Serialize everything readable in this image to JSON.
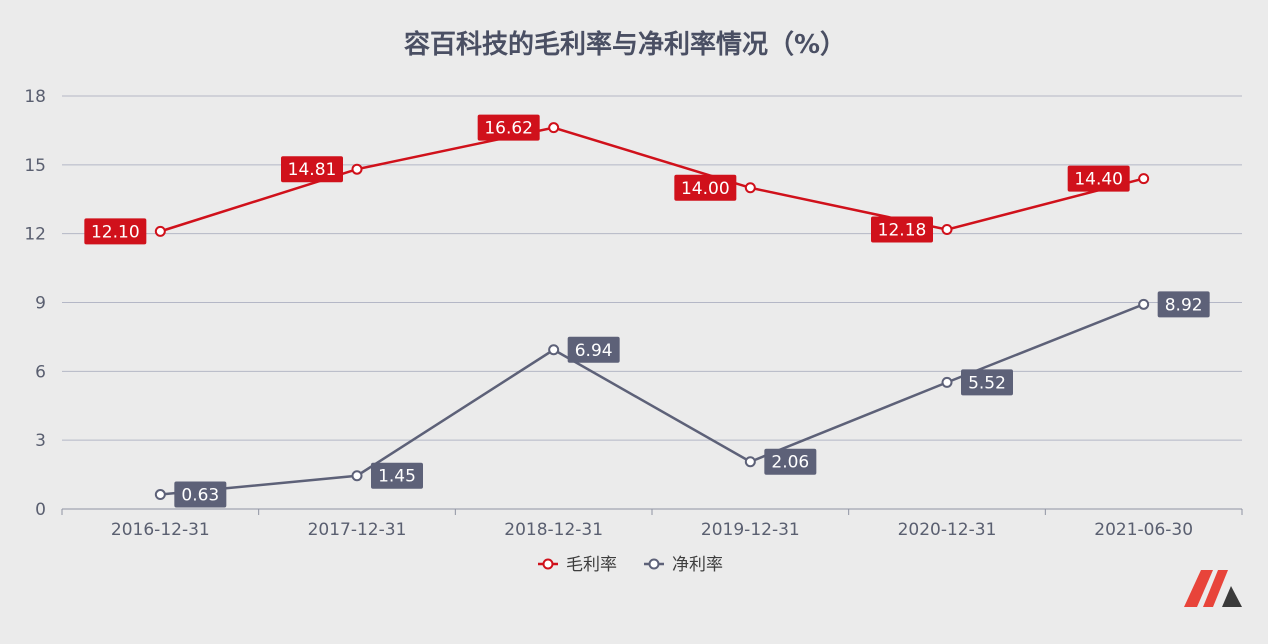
{
  "chart_data": {
    "type": "line",
    "title": "容百科技的毛利率与净利率情况（%）",
    "categories": [
      "2016-12-31",
      "2017-12-31",
      "2018-12-31",
      "2019-12-31",
      "2020-12-31",
      "2021-06-30"
    ],
    "y_ticks": [
      "0",
      "3",
      "6",
      "9",
      "12",
      "15",
      "18"
    ],
    "ylim": [
      0,
      18
    ],
    "grid": true,
    "legend_position": "bottom-center",
    "series": [
      {
        "name": "毛利率",
        "color": "#d0111b",
        "label_side": "left",
        "values": [
          12.1,
          14.81,
          16.62,
          14.0,
          12.18,
          14.4
        ],
        "labels": [
          "12.10",
          "14.81",
          "16.62",
          "14.00",
          "12.18",
          "14.40"
        ]
      },
      {
        "name": "净利率",
        "color": "#5d6178",
        "label_side": "right",
        "values": [
          0.63,
          1.45,
          6.94,
          2.06,
          5.52,
          8.92
        ],
        "labels": [
          "0.63",
          "1.45",
          "6.94",
          "2.06",
          "5.52",
          "8.92"
        ]
      }
    ]
  }
}
